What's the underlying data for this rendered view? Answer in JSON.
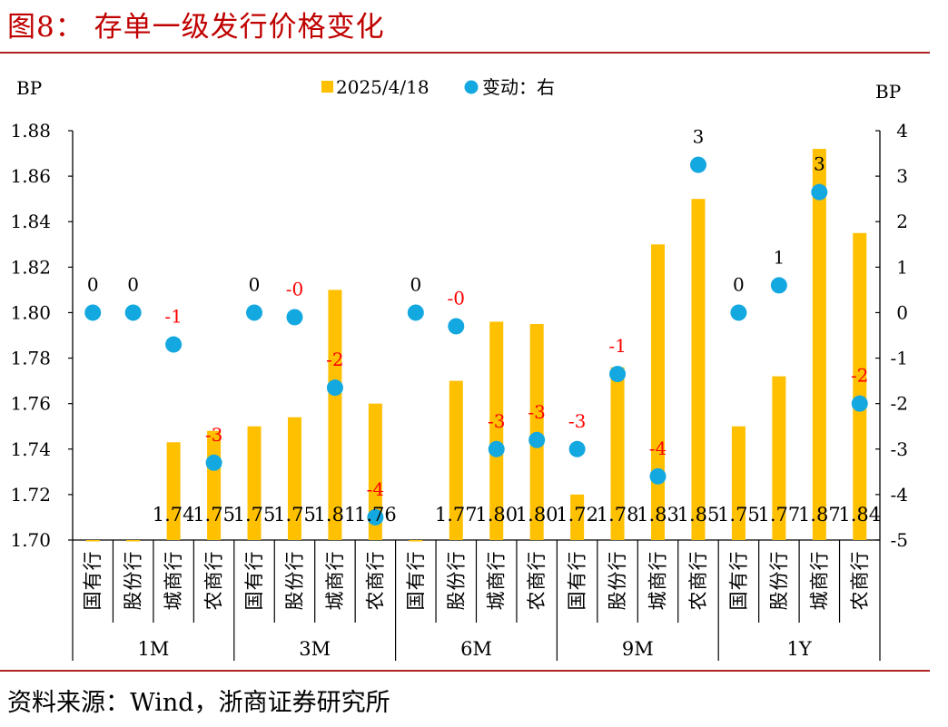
{
  "figure_title": "图8：  存单一级发行价格变化",
  "source": "资料来源：Wind，浙商证券研究所",
  "colors": {
    "bar": "#ffc000",
    "dot": "#14a8e0",
    "change_label_neg": "#ff0000",
    "change_label_pos": "#000000",
    "title": "#c00000"
  },
  "chart_data": {
    "type": "bar",
    "left_unit": "BP",
    "right_unit": "BP",
    "legend": {
      "bar_label": "2025/4/18",
      "dot_label": "变动：右",
      "position": "top-center"
    },
    "left_axis": {
      "min": 1.7,
      "max": 1.88,
      "step": 0.02,
      "ticks": [
        "1.70",
        "1.72",
        "1.74",
        "1.76",
        "1.78",
        "1.80",
        "1.82",
        "1.84",
        "1.86",
        "1.88"
      ]
    },
    "right_axis": {
      "min": -5,
      "max": 4,
      "step": 1,
      "ticks": [
        "-5",
        "-4",
        "-3",
        "-2",
        "-1",
        "0",
        "1",
        "2",
        "3",
        "4"
      ]
    },
    "groups": [
      "1M",
      "3M",
      "6M",
      "9M",
      "1Y"
    ],
    "categories": [
      "国有行",
      "股份行",
      "城商行",
      "农商行"
    ],
    "points": [
      {
        "group": "1M",
        "category": "国有行",
        "value": 1.7,
        "value_label": "",
        "change": 0,
        "change_label": "0"
      },
      {
        "group": "1M",
        "category": "股份行",
        "value": 1.7,
        "value_label": "",
        "change": 0,
        "change_label": "0"
      },
      {
        "group": "1M",
        "category": "城商行",
        "value": 1.743,
        "value_label": "1.74",
        "change": -0.7,
        "change_label": "-1"
      },
      {
        "group": "1M",
        "category": "农商行",
        "value": 1.748,
        "value_label": "1.75",
        "change": -3.3,
        "change_label": "-3"
      },
      {
        "group": "3M",
        "category": "国有行",
        "value": 1.75,
        "value_label": "1.75",
        "change": 0,
        "change_label": "0"
      },
      {
        "group": "3M",
        "category": "股份行",
        "value": 1.754,
        "value_label": "1.75",
        "change": -0.1,
        "change_label": "-0"
      },
      {
        "group": "3M",
        "category": "城商行",
        "value": 1.81,
        "value_label": "1.81",
        "change": -1.65,
        "change_label": "-2"
      },
      {
        "group": "3M",
        "category": "农商行",
        "value": 1.76,
        "value_label": "1.76",
        "change": -4.5,
        "change_label": "-4"
      },
      {
        "group": "6M",
        "category": "国有行",
        "value": 1.7,
        "value_label": "",
        "change": 0,
        "change_label": "0"
      },
      {
        "group": "6M",
        "category": "股份行",
        "value": 1.77,
        "value_label": "1.77",
        "change": -0.3,
        "change_label": "-0"
      },
      {
        "group": "6M",
        "category": "城商行",
        "value": 1.796,
        "value_label": "1.80",
        "change": -3.0,
        "change_label": "-3"
      },
      {
        "group": "6M",
        "category": "农商行",
        "value": 1.795,
        "value_label": "1.80",
        "change": -2.8,
        "change_label": "-3"
      },
      {
        "group": "9M",
        "category": "国有行",
        "value": 1.72,
        "value_label": "1.72",
        "change": -3.0,
        "change_label": "-3"
      },
      {
        "group": "9M",
        "category": "股份行",
        "value": 1.776,
        "value_label": "1.78",
        "change": -1.35,
        "change_label": "-1"
      },
      {
        "group": "9M",
        "category": "城商行",
        "value": 1.83,
        "value_label": "1.83",
        "change": -3.6,
        "change_label": "-4"
      },
      {
        "group": "9M",
        "category": "农商行",
        "value": 1.85,
        "value_label": "1.85",
        "change": 3.25,
        "change_label": "3"
      },
      {
        "group": "1Y",
        "category": "国有行",
        "value": 1.75,
        "value_label": "1.75",
        "change": 0,
        "change_label": "0"
      },
      {
        "group": "1Y",
        "category": "股份行",
        "value": 1.772,
        "value_label": "1.77",
        "change": 0.6,
        "change_label": "1"
      },
      {
        "group": "1Y",
        "category": "城商行",
        "value": 1.872,
        "value_label": "1.87",
        "change": 2.65,
        "change_label": "3"
      },
      {
        "group": "1Y",
        "category": "农商行",
        "value": 1.835,
        "value_label": "1.84",
        "change": -2.0,
        "change_label": "-2"
      }
    ]
  }
}
